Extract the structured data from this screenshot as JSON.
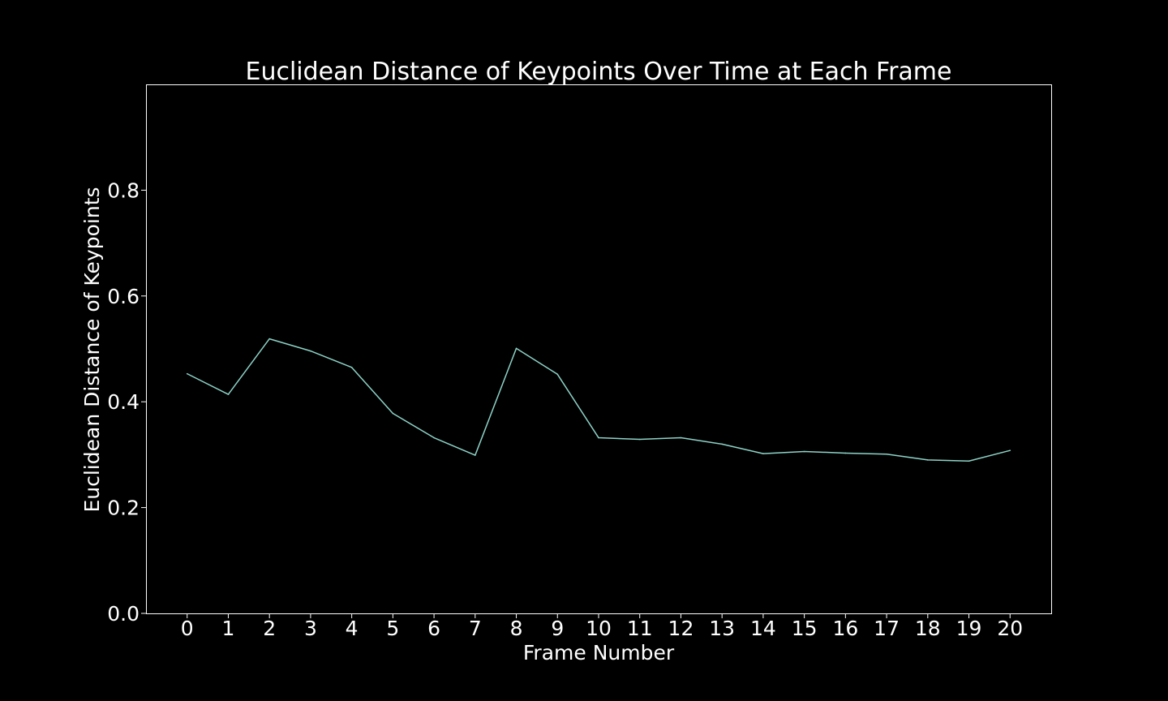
{
  "chart_data": {
    "type": "line",
    "title": "Euclidean Distance of Keypoints Over Time at Each Frame",
    "xlabel": "Frame Number",
    "ylabel": "Euclidean Distance of Keypoints",
    "x": [
      0,
      1,
      2,
      3,
      4,
      5,
      6,
      7,
      8,
      9,
      10,
      11,
      12,
      13,
      14,
      15,
      16,
      17,
      18,
      19,
      20
    ],
    "series": [
      {
        "values": [
          0.453,
          0.414,
          0.519,
          0.496,
          0.465,
          0.378,
          0.332,
          0.299,
          0.501,
          0.452,
          0.332,
          0.329,
          0.332,
          0.32,
          0.302,
          0.306,
          0.303,
          0.301,
          0.29,
          0.288,
          0.308
        ],
        "color": "#8dd3c7"
      }
    ],
    "x_ticks": [
      "0",
      "1",
      "2",
      "3",
      "4",
      "5",
      "6",
      "7",
      "8",
      "9",
      "10",
      "11",
      "12",
      "13",
      "14",
      "15",
      "16",
      "17",
      "18",
      "19",
      "20"
    ],
    "y_ticks": [
      {
        "value": 0.0,
        "label": "0.0"
      },
      {
        "value": 0.2,
        "label": "0.2"
      },
      {
        "value": 0.4,
        "label": "0.4"
      },
      {
        "value": 0.6,
        "label": "0.6"
      },
      {
        "value": 0.8,
        "label": "0.8"
      }
    ],
    "xlim": [
      -1,
      21
    ],
    "ylim": [
      0,
      1.0
    ],
    "grid": false,
    "legend": "none",
    "background_color": "#000000",
    "axis_color": "#ffffff"
  }
}
